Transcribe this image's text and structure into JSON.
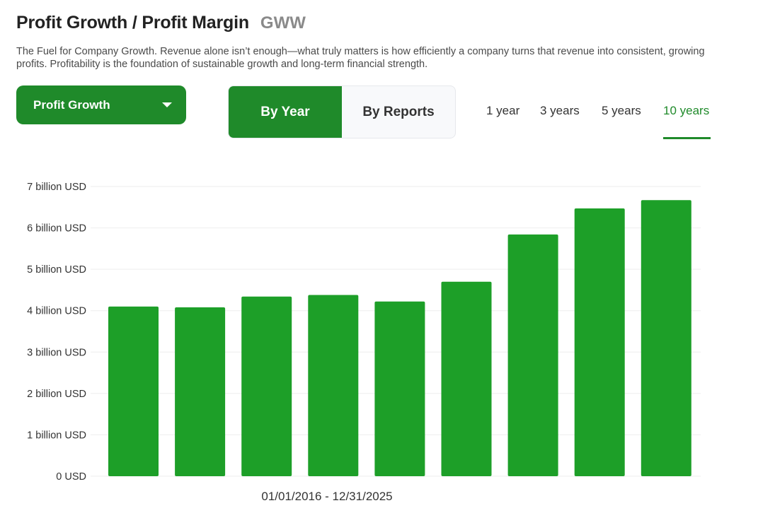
{
  "header": {
    "title": "Profit Growth / Profit Margin",
    "ticker": "GWW",
    "description": "The Fuel for Company Growth. Revenue alone isn’t enough—what truly matters is how efficiently a company turns that revenue into consistent, growing profits. Profitability is the foundation of sustainable growth and long-term financial strength."
  },
  "controls": {
    "metric_selected": "Profit Growth",
    "period_toggle": [
      {
        "label": "By Year",
        "active": true
      },
      {
        "label": "By Reports",
        "active": false
      }
    ],
    "range_tabs": [
      {
        "label": "1 year",
        "active": false
      },
      {
        "label": "3 years",
        "active": false
      },
      {
        "label": "5 years",
        "active": false
      },
      {
        "label": "10 years",
        "active": true
      }
    ]
  },
  "colors": {
    "accent": "#1f8a2a",
    "bar": "#1d9f28",
    "grid": "#eeeeee"
  },
  "chart_data": {
    "type": "bar",
    "date_range": "01/01/2016 - 12/31/2025",
    "unit": "billion USD",
    "y_tick_labels": [
      "0 USD",
      "1 billion USD",
      "2 billion USD",
      "3 billion USD",
      "4 billion USD",
      "5 billion USD",
      "6 billion USD",
      "7 billion USD"
    ],
    "ylim": [
      0,
      7
    ],
    "grid": true,
    "values": [
      4.1,
      4.08,
      4.34,
      4.38,
      4.22,
      4.7,
      5.84,
      6.47,
      6.67
    ]
  }
}
